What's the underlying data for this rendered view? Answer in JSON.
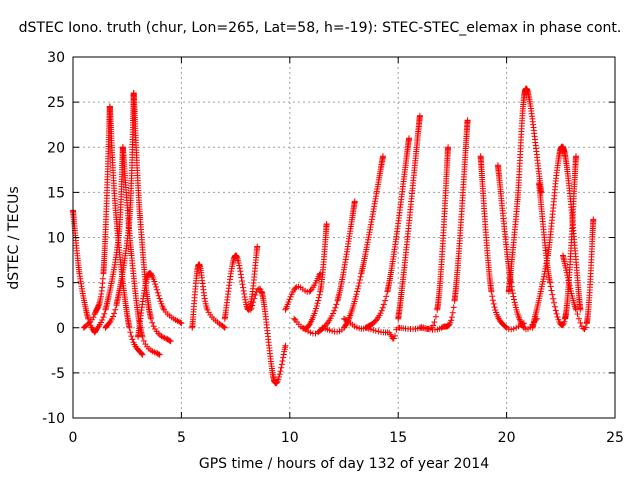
{
  "chart_data": {
    "type": "scatter",
    "title": "dSTEC Iono. truth (chur, Lon=265, Lat=58, h=-19): STEC-STEC_elemax in phase cont.",
    "xlabel": "GPS time / hours of day 132 of year 2014",
    "ylabel": "dSTEC  / TECUs",
    "xlim": [
      0,
      25
    ],
    "ylim": [
      -10,
      30
    ],
    "xticks": [
      0,
      5,
      10,
      15,
      20,
      25
    ],
    "yticks": [
      -10,
      -5,
      0,
      5,
      10,
      15,
      20,
      25,
      30
    ],
    "grid": true,
    "marker": "plus",
    "color": "#ff0000",
    "arcs": [
      {
        "x": [
          0.0,
          0.3,
          0.7,
          1.0
        ],
        "y": [
          13,
          6,
          1,
          -0.5
        ]
      },
      {
        "x": [
          0.5,
          1.0,
          1.4,
          1.7
        ],
        "y": [
          0,
          1.5,
          6,
          24.5
        ]
      },
      {
        "x": [
          1.7,
          2.0,
          2.6,
          3.2
        ],
        "y": [
          24.5,
          12,
          0,
          -3
        ]
      },
      {
        "x": [
          1.0,
          1.5,
          2.1,
          2.3
        ],
        "y": [
          -0.5,
          2,
          10,
          20
        ]
      },
      {
        "x": [
          2.3,
          2.7,
          3.2,
          4.0
        ],
        "y": [
          20,
          8,
          -1,
          -3
        ]
      },
      {
        "x": [
          1.5,
          2.0,
          2.6,
          2.8
        ],
        "y": [
          0,
          2.5,
          12,
          26
        ]
      },
      {
        "x": [
          2.8,
          3.1,
          3.6,
          4.5
        ],
        "y": [
          26,
          12,
          1,
          -1.5
        ]
      },
      {
        "x": [
          3.0,
          3.5,
          4.2,
          5.0
        ],
        "y": [
          -1,
          6,
          2,
          0.5
        ]
      },
      {
        "x": [
          5.5,
          5.8,
          6.2,
          7.0
        ],
        "y": [
          0,
          7,
          2,
          0
        ]
      },
      {
        "x": [
          7.0,
          7.5,
          8.1,
          8.5
        ],
        "y": [
          1,
          8,
          2,
          9
        ]
      },
      {
        "x": [
          8.2,
          8.7,
          9.3,
          9.8
        ],
        "y": [
          2,
          4,
          -6,
          -2
        ]
      },
      {
        "x": [
          9.8,
          10.3,
          10.9,
          11.4
        ],
        "y": [
          2,
          4.5,
          4,
          6
        ]
      },
      {
        "x": [
          10.2,
          10.8,
          11.4,
          11.7
        ],
        "y": [
          1,
          0,
          4,
          11.5
        ]
      },
      {
        "x": [
          10.6,
          11.3,
          12.2,
          13.0
        ],
        "y": [
          0,
          -0.5,
          3,
          14
        ]
      },
      {
        "x": [
          11.5,
          12.5,
          13.3,
          14.3
        ],
        "y": [
          0,
          0,
          6,
          19
        ]
      },
      {
        "x": [
          12.5,
          13.5,
          14.5,
          15.5
        ],
        "y": [
          1,
          0,
          4,
          21
        ]
      },
      {
        "x": [
          13.5,
          14.5,
          15.0,
          16.0
        ],
        "y": [
          0,
          -0.5,
          1,
          23.5
        ]
      },
      {
        "x": [
          15.0,
          16.0,
          16.8,
          17.3
        ],
        "y": [
          0,
          0,
          2,
          20
        ]
      },
      {
        "x": [
          16.0,
          17.0,
          17.6,
          18.2
        ],
        "y": [
          0,
          0,
          3,
          23
        ]
      },
      {
        "x": [
          18.8,
          19.3,
          20.0,
          20.8
        ],
        "y": [
          19,
          4,
          0,
          0.5
        ]
      },
      {
        "x": [
          19.6,
          20.2,
          20.8,
          21.4
        ],
        "y": [
          18,
          5,
          0,
          1
        ]
      },
      {
        "x": [
          20.1,
          20.5,
          20.9,
          21.6
        ],
        "y": [
          4,
          14,
          26.5,
          15
        ]
      },
      {
        "x": [
          21.5,
          22.0,
          22.7,
          23.2
        ],
        "y": [
          16,
          5,
          1,
          19
        ]
      },
      {
        "x": [
          21.2,
          21.9,
          22.6,
          23.4
        ],
        "y": [
          0,
          8,
          20,
          2
        ]
      },
      {
        "x": [
          22.6,
          23.2,
          23.7,
          24.0
        ],
        "y": [
          8,
          2,
          0.5,
          12
        ]
      }
    ]
  }
}
